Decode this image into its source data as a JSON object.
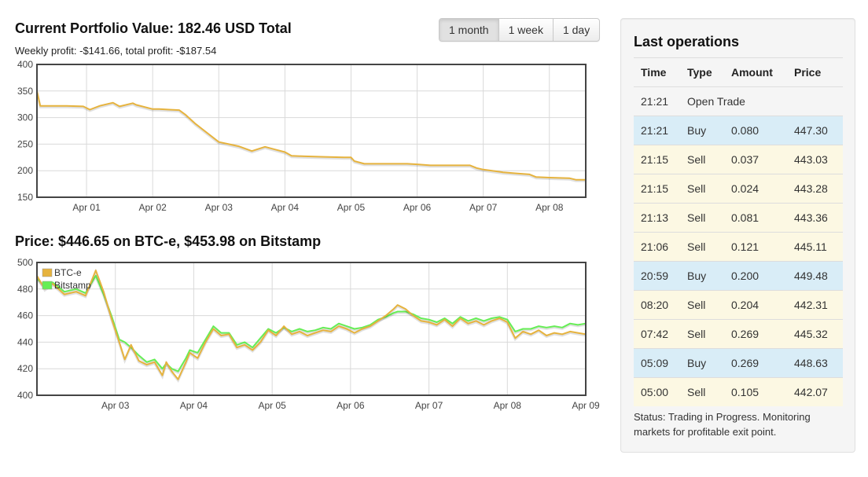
{
  "portfolio": {
    "title": "Current Portfolio Value: 182.46 USD Total",
    "profit_text": "Weekly profit: -$141.66, total profit: -$187.54"
  },
  "price": {
    "title": "Price: $446.65 on BTC-e, $453.98 on Bitstamp"
  },
  "range_buttons": [
    {
      "label": "1 month",
      "active": true
    },
    {
      "label": "1 week",
      "active": false
    },
    {
      "label": "1 day",
      "active": false
    }
  ],
  "operations": {
    "title": "Last operations",
    "columns": [
      "Time",
      "Type",
      "Amount",
      "Price"
    ],
    "rows": [
      {
        "time": "21:21",
        "type": "Open Trade",
        "amount": "",
        "price": "",
        "kind": "plain"
      },
      {
        "time": "21:21",
        "type": "Buy",
        "amount": "0.080",
        "price": "447.30",
        "kind": "buy"
      },
      {
        "time": "21:15",
        "type": "Sell",
        "amount": "0.037",
        "price": "443.03",
        "kind": "sell"
      },
      {
        "time": "21:15",
        "type": "Sell",
        "amount": "0.024",
        "price": "443.28",
        "kind": "sell"
      },
      {
        "time": "21:13",
        "type": "Sell",
        "amount": "0.081",
        "price": "443.36",
        "kind": "sell"
      },
      {
        "time": "21:06",
        "type": "Sell",
        "amount": "0.121",
        "price": "445.11",
        "kind": "sell"
      },
      {
        "time": "20:59",
        "type": "Buy",
        "amount": "0.200",
        "price": "449.48",
        "kind": "buy"
      },
      {
        "time": "08:20",
        "type": "Sell",
        "amount": "0.204",
        "price": "442.31",
        "kind": "sell"
      },
      {
        "time": "07:42",
        "type": "Sell",
        "amount": "0.269",
        "price": "445.32",
        "kind": "sell"
      },
      {
        "time": "05:09",
        "type": "Buy",
        "amount": "0.269",
        "price": "448.63",
        "kind": "buy"
      },
      {
        "time": "05:00",
        "type": "Sell",
        "amount": "0.105",
        "price": "442.07",
        "kind": "sell"
      }
    ],
    "status": "Status: Trading in Progress. Monitoring markets for profitable exit point."
  },
  "colors": {
    "btce": "#e6b33e",
    "bitstamp": "#66ee55",
    "portfolio_line": "#e6b33e",
    "grid": "#d9d9d9",
    "frame": "#444444",
    "buy_row": "#d9edf7",
    "sell_row": "#fcf8e3"
  },
  "chart_data": [
    {
      "type": "line",
      "title": "",
      "ylim": [
        150,
        400
      ],
      "y_ticks": [
        150,
        200,
        250,
        300,
        350,
        400
      ],
      "x_ticks": [
        "Apr 01",
        "Apr 02",
        "Apr 03",
        "Apr 04",
        "Apr 05",
        "Apr 06",
        "Apr 07",
        "Apr 08"
      ],
      "x_tick_days": [
        1,
        2,
        3,
        4,
        5,
        6,
        7,
        8
      ],
      "xlim_days": [
        0.25,
        8.55
      ],
      "grid": true,
      "series": [
        {
          "name": "",
          "x_days": [
            0.25,
            0.3,
            0.35,
            0.5,
            0.7,
            0.95,
            1.05,
            1.2,
            1.4,
            1.5,
            1.7,
            1.75,
            2.0,
            2.1,
            2.25,
            2.4,
            2.5,
            2.65,
            3.0,
            3.15,
            3.3,
            3.5,
            3.7,
            3.85,
            4.0,
            4.1,
            4.3,
            4.6,
            4.9,
            5.0,
            5.05,
            5.2,
            5.4,
            5.7,
            5.85,
            6.0,
            6.2,
            6.5,
            6.8,
            6.9,
            7.0,
            7.3,
            7.5,
            7.7,
            7.8,
            8.0,
            8.3,
            8.4,
            8.55
          ],
          "values": [
            350,
            322,
            322,
            322,
            322,
            321,
            315,
            322,
            328,
            321,
            327,
            324,
            316,
            316,
            315,
            314,
            305,
            288,
            254,
            250,
            246,
            237,
            245,
            240,
            235,
            228,
            227,
            226,
            225,
            225,
            218,
            213,
            213,
            213,
            213,
            212,
            210,
            210,
            210,
            205,
            202,
            197,
            195,
            193,
            188,
            187,
            186,
            183,
            183
          ]
        }
      ]
    },
    {
      "type": "line",
      "title": "",
      "ylim": [
        400,
        500
      ],
      "y_ticks": [
        400,
        420,
        440,
        460,
        480,
        500
      ],
      "x_ticks": [
        "Apr 03",
        "Apr 04",
        "Apr 05",
        "Apr 06",
        "Apr 07",
        "Apr 08",
        "Apr 09"
      ],
      "x_tick_days": [
        3,
        4,
        5,
        6,
        7,
        8,
        9
      ],
      "xlim_days": [
        2.0,
        9.0
      ],
      "grid": true,
      "legend": "top-left",
      "series": [
        {
          "name": "BTC-e",
          "x_days": [
            2.0,
            2.1,
            2.2,
            2.35,
            2.5,
            2.62,
            2.75,
            2.85,
            2.95,
            3.05,
            3.12,
            3.2,
            3.3,
            3.4,
            3.5,
            3.6,
            3.65,
            3.72,
            3.8,
            3.9,
            3.95,
            4.05,
            4.15,
            4.25,
            4.35,
            4.45,
            4.55,
            4.65,
            4.75,
            4.85,
            4.95,
            5.05,
            5.15,
            5.25,
            5.35,
            5.45,
            5.55,
            5.65,
            5.75,
            5.85,
            5.95,
            6.05,
            6.15,
            6.25,
            6.35,
            6.45,
            6.55,
            6.6,
            6.7,
            6.8,
            6.9,
            7.0,
            7.1,
            7.2,
            7.3,
            7.4,
            7.5,
            7.6,
            7.7,
            7.8,
            7.9,
            8.0,
            8.1,
            8.2,
            8.3,
            8.4,
            8.5,
            8.6,
            8.7,
            8.8,
            8.9,
            9.0
          ],
          "values": [
            490,
            480,
            484,
            476,
            478,
            475,
            494,
            478,
            458,
            440,
            427,
            438,
            426,
            423,
            425,
            415,
            425,
            418,
            412,
            425,
            432,
            428,
            440,
            450,
            445,
            446,
            436,
            438,
            434,
            440,
            449,
            445,
            452,
            446,
            448,
            445,
            447,
            449,
            448,
            452,
            450,
            447,
            450,
            452,
            456,
            460,
            465,
            468,
            465,
            460,
            456,
            455,
            453,
            457,
            452,
            458,
            454,
            456,
            453,
            456,
            458,
            455,
            443,
            448,
            446,
            449,
            445,
            447,
            446,
            448,
            447,
            446
          ]
        },
        {
          "name": "Bitstamp",
          "x_days": [
            2.0,
            2.1,
            2.2,
            2.35,
            2.5,
            2.62,
            2.75,
            2.85,
            2.95,
            3.05,
            3.12,
            3.2,
            3.3,
            3.4,
            3.5,
            3.6,
            3.65,
            3.72,
            3.8,
            3.9,
            3.95,
            4.05,
            4.15,
            4.25,
            4.35,
            4.45,
            4.55,
            4.65,
            4.75,
            4.85,
            4.95,
            5.05,
            5.15,
            5.25,
            5.35,
            5.45,
            5.55,
            5.65,
            5.75,
            5.85,
            5.95,
            6.05,
            6.15,
            6.25,
            6.35,
            6.45,
            6.55,
            6.6,
            6.7,
            6.8,
            6.9,
            7.0,
            7.1,
            7.2,
            7.3,
            7.4,
            7.5,
            7.6,
            7.7,
            7.8,
            7.9,
            8.0,
            8.1,
            8.2,
            8.3,
            8.4,
            8.5,
            8.6,
            8.7,
            8.8,
            8.9,
            9.0
          ],
          "values": [
            488,
            482,
            485,
            478,
            480,
            477,
            490,
            476,
            460,
            442,
            440,
            436,
            430,
            425,
            427,
            420,
            424,
            420,
            418,
            428,
            434,
            432,
            442,
            452,
            447,
            447,
            438,
            440,
            436,
            443,
            450,
            447,
            451,
            448,
            450,
            448,
            449,
            451,
            450,
            454,
            452,
            450,
            451,
            453,
            457,
            459,
            462,
            463,
            463,
            461,
            458,
            457,
            455,
            458,
            454,
            459,
            456,
            458,
            456,
            458,
            459,
            457,
            448,
            450,
            450,
            452,
            451,
            452,
            451,
            454,
            453,
            454
          ]
        }
      ]
    }
  ]
}
